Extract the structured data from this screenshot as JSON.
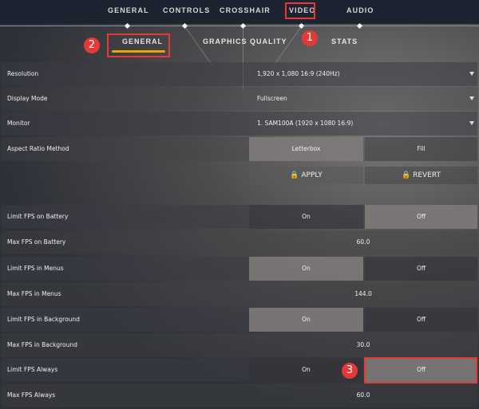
{
  "top_tabs": [
    "GENERAL",
    "CONTROLS",
    "CROSSHAIR",
    "VIDEO",
    "AUDIO"
  ],
  "sub_tabs": [
    "GENERAL",
    "GRAPHICS QUALITY",
    "STATS"
  ],
  "annotations": [
    "1",
    "2",
    "3"
  ],
  "accent": "#e6a800",
  "annotation_color": "#e53935",
  "dropdowns": [
    {
      "label": "Resolution",
      "value": "1,920 x 1,080 16:9 (240Hz)"
    },
    {
      "label": "Display Mode",
      "value": "Fullscreen"
    },
    {
      "label": "Monitor",
      "value": "1. SAM100A (1920 x  1080 16:9)"
    }
  ],
  "aspect": {
    "label": "Aspect Ratio Method",
    "options": [
      "Letterbox",
      "Fill"
    ],
    "selected": "Letterbox"
  },
  "apply_label": "APPLY",
  "revert_label": "REVERT",
  "lock_icon": "lock-icon",
  "fps": [
    {
      "toggle_label": "Limit FPS on Battery",
      "on": "On",
      "off": "Off",
      "selected": "Off",
      "max_label": "Max FPS on Battery",
      "max_value": "60.0"
    },
    {
      "toggle_label": "Limit FPS in Menus",
      "on": "On",
      "off": "Off",
      "selected": "On",
      "max_label": "Max FPS in Menus",
      "max_value": "144.0"
    },
    {
      "toggle_label": "Limit FPS in Background",
      "on": "On",
      "off": "Off",
      "selected": "On",
      "max_label": "Max FPS in Background",
      "max_value": "30.0"
    },
    {
      "toggle_label": "Limit FPS Always",
      "on": "On",
      "off": "Off",
      "selected": "Off",
      "max_label": "Max FPS Always",
      "max_value": "60.0"
    }
  ]
}
